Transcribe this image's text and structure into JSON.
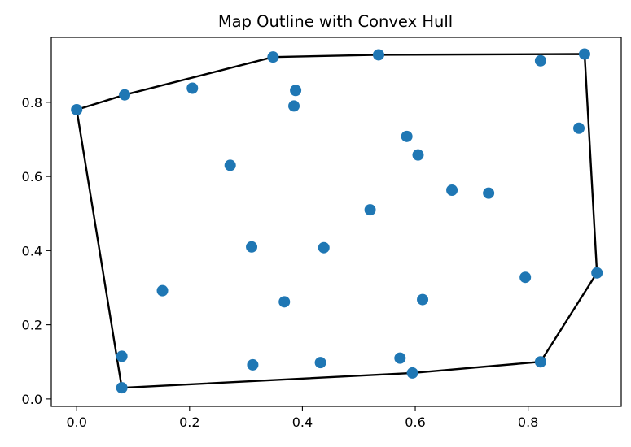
{
  "chart_data": {
    "type": "scatter",
    "title": "Map Outline with Convex Hull",
    "xlabel": "",
    "ylabel": "",
    "xlim": [
      -0.045,
      0.965
    ],
    "ylim": [
      -0.02,
      0.975
    ],
    "xticks": [
      0.0,
      0.2,
      0.4,
      0.6,
      0.8
    ],
    "yticks": [
      0.0,
      0.2,
      0.4,
      0.6,
      0.8
    ],
    "xtick_labels": [
      "0.0",
      "0.2",
      "0.4",
      "0.6",
      "0.8"
    ],
    "ytick_labels": [
      "0.0",
      "0.2",
      "0.4",
      "0.6",
      "0.8"
    ],
    "grid": false,
    "legend": "none",
    "point_color": "#1f77b4",
    "hull_color": "#000000",
    "points": [
      {
        "x": 0.0,
        "y": 0.78
      },
      {
        "x": 0.085,
        "y": 0.82
      },
      {
        "x": 0.205,
        "y": 0.838
      },
      {
        "x": 0.348,
        "y": 0.922
      },
      {
        "x": 0.535,
        "y": 0.928
      },
      {
        "x": 0.822,
        "y": 0.912
      },
      {
        "x": 0.9,
        "y": 0.93
      },
      {
        "x": 0.388,
        "y": 0.832
      },
      {
        "x": 0.385,
        "y": 0.79
      },
      {
        "x": 0.585,
        "y": 0.708
      },
      {
        "x": 0.605,
        "y": 0.658
      },
      {
        "x": 0.89,
        "y": 0.73
      },
      {
        "x": 0.272,
        "y": 0.63
      },
      {
        "x": 0.665,
        "y": 0.563
      },
      {
        "x": 0.73,
        "y": 0.555
      },
      {
        "x": 0.52,
        "y": 0.51
      },
      {
        "x": 0.31,
        "y": 0.41
      },
      {
        "x": 0.438,
        "y": 0.408
      },
      {
        "x": 0.922,
        "y": 0.34
      },
      {
        "x": 0.795,
        "y": 0.328
      },
      {
        "x": 0.152,
        "y": 0.292
      },
      {
        "x": 0.368,
        "y": 0.262
      },
      {
        "x": 0.613,
        "y": 0.268
      },
      {
        "x": 0.08,
        "y": 0.115
      },
      {
        "x": 0.573,
        "y": 0.11
      },
      {
        "x": 0.432,
        "y": 0.098
      },
      {
        "x": 0.312,
        "y": 0.092
      },
      {
        "x": 0.822,
        "y": 0.1
      },
      {
        "x": 0.595,
        "y": 0.07
      },
      {
        "x": 0.08,
        "y": 0.03
      }
    ],
    "hull": [
      {
        "x": 0.0,
        "y": 0.78
      },
      {
        "x": 0.085,
        "y": 0.82
      },
      {
        "x": 0.348,
        "y": 0.922
      },
      {
        "x": 0.535,
        "y": 0.928
      },
      {
        "x": 0.9,
        "y": 0.93
      },
      {
        "x": 0.922,
        "y": 0.34
      },
      {
        "x": 0.822,
        "y": 0.1
      },
      {
        "x": 0.595,
        "y": 0.07
      },
      {
        "x": 0.08,
        "y": 0.03
      },
      {
        "x": 0.0,
        "y": 0.78
      }
    ]
  }
}
